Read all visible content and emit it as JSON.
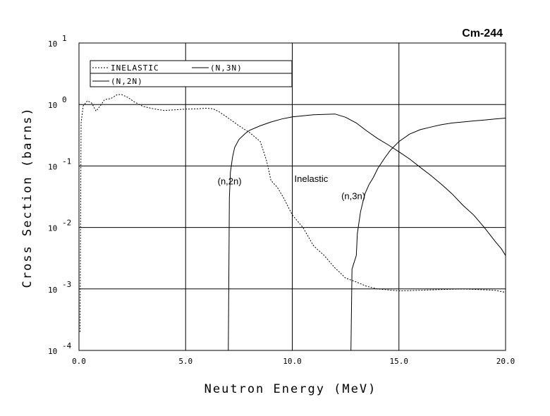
{
  "chart_data": {
    "type": "line",
    "title": "Cm-244",
    "xlabel": "Neutron Energy (MeV)",
    "ylabel": "Cross Section (barns)",
    "xlim": [
      0,
      20
    ],
    "ylim": [
      0.0001,
      10
    ],
    "yscale": "log",
    "grid": true,
    "legend_position": "top-left",
    "x_ticks": [
      "0.0",
      "5.0",
      "10.0",
      "15.0",
      "20.0"
    ],
    "y_ticks": [
      {
        "base": "10",
        "exp": "1"
      },
      {
        "base": "10",
        "exp": "0"
      },
      {
        "base": "10",
        "exp": "-1"
      },
      {
        "base": "10",
        "exp": "-2"
      },
      {
        "base": "10",
        "exp": "-3"
      },
      {
        "base": "10",
        "exp": "-4"
      }
    ],
    "legend": [
      {
        "label": "INELASTIC",
        "style": "dashed"
      },
      {
        "label": "(N,3N)",
        "style": "solid"
      },
      {
        "label": "(N,2N)",
        "style": "solid"
      }
    ],
    "annotations": [
      {
        "text": "Inelastic",
        "x": 10.1,
        "y": 0.055
      },
      {
        "text": "(n,2n)",
        "x": 6.5,
        "y": 0.05
      },
      {
        "text": "(n,3n)",
        "x": 12.3,
        "y": 0.029
      }
    ],
    "series": [
      {
        "name": "INELASTIC",
        "style": "dashed",
        "x": [
          0.05,
          0.1,
          0.2,
          0.4,
          0.6,
          0.8,
          1.0,
          1.2,
          1.5,
          1.8,
          2.0,
          2.3,
          2.6,
          3.0,
          3.5,
          4.0,
          4.5,
          5.0,
          5.5,
          6.0,
          6.3,
          6.6,
          7.0,
          7.5,
          8.0,
          8.5,
          8.8,
          9.0,
          9.3,
          9.6,
          10.0,
          10.5,
          11.0,
          11.5,
          12.0,
          12.5,
          13.0,
          13.5,
          14.0,
          15.0,
          16.0,
          17.0,
          18.0,
          19.0,
          19.5,
          20.0
        ],
        "y": [
          0.0002,
          0.5,
          0.95,
          1.15,
          1.05,
          0.78,
          0.95,
          1.2,
          1.25,
          1.45,
          1.45,
          1.3,
          1.1,
          0.93,
          0.85,
          0.8,
          0.82,
          0.84,
          0.85,
          0.87,
          0.85,
          0.75,
          0.6,
          0.45,
          0.35,
          0.25,
          0.12,
          0.058,
          0.045,
          0.03,
          0.016,
          0.01,
          0.005,
          0.0035,
          0.0022,
          0.0015,
          0.0013,
          0.0011,
          0.001,
          0.00093,
          0.00095,
          0.00098,
          0.001,
          0.00097,
          0.00095,
          0.00088
        ]
      },
      {
        "name": "(N,2N)",
        "style": "solid",
        "x": [
          7.0,
          7.05,
          7.1,
          7.2,
          7.3,
          7.5,
          7.8,
          8.0,
          8.5,
          9.0,
          9.5,
          10.0,
          11.0,
          12.0,
          12.5,
          13.0,
          13.5,
          14.0,
          14.5,
          15.0,
          15.5,
          16.0,
          16.5,
          17.0,
          17.5,
          18.0,
          18.5,
          19.0,
          19.5,
          19.8,
          20.0
        ],
        "y": [
          0.0001,
          0.03,
          0.08,
          0.14,
          0.2,
          0.27,
          0.34,
          0.38,
          0.45,
          0.52,
          0.58,
          0.63,
          0.68,
          0.7,
          0.62,
          0.5,
          0.37,
          0.28,
          0.22,
          0.17,
          0.13,
          0.095,
          0.07,
          0.05,
          0.035,
          0.023,
          0.016,
          0.01,
          0.006,
          0.0045,
          0.0035
        ]
      },
      {
        "name": "(N,3N)",
        "style": "solid",
        "x": [
          12.75,
          12.8,
          12.9,
          13.0,
          13.05,
          13.2,
          13.4,
          13.6,
          13.8,
          14.0,
          14.3,
          14.6,
          15.0,
          15.5,
          16.0,
          16.5,
          17.0,
          17.5,
          18.0,
          18.5,
          19.0,
          19.5,
          20.0
        ],
        "y": [
          0.0001,
          0.0021,
          0.0027,
          0.0035,
          0.008,
          0.018,
          0.035,
          0.05,
          0.065,
          0.09,
          0.13,
          0.18,
          0.25,
          0.33,
          0.39,
          0.43,
          0.47,
          0.5,
          0.52,
          0.54,
          0.56,
          0.58,
          0.6
        ]
      }
    ]
  }
}
